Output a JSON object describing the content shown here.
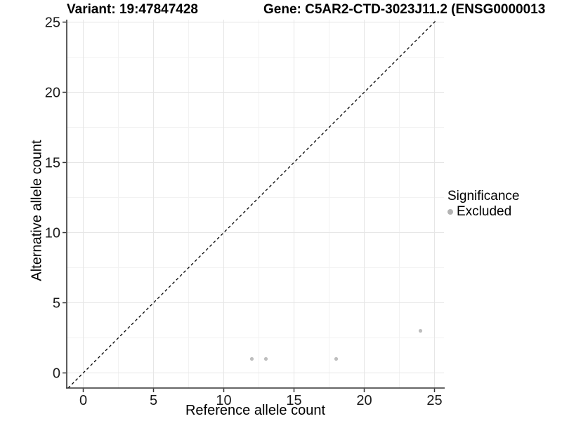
{
  "titles": {
    "variant": "Variant: 19:47847428",
    "gene": "Gene: C5AR2-CTD-3023J11.2 (ENSG0000013"
  },
  "legend": {
    "title": "Significance",
    "position": "right",
    "items": [
      {
        "label": "Excluded",
        "color": "#b3b3b3"
      }
    ]
  },
  "chart_data": {
    "type": "scatter",
    "title": "",
    "xlabel": "Reference allele count",
    "ylabel": "Alternative allele count",
    "x_ticks": [
      0,
      5,
      10,
      15,
      20,
      25
    ],
    "y_ticks": [
      0,
      5,
      10,
      15,
      20,
      25
    ],
    "xlim": [
      -1.175,
      25.675
    ],
    "ylim": [
      -1.075,
      25.175
    ],
    "grid": true,
    "identity_line": {
      "slope": 1,
      "intercept": 0,
      "style": "dashed",
      "color": "#000000"
    },
    "series": [
      {
        "name": "Excluded",
        "color": "#bebebe",
        "points": [
          {
            "x": 12,
            "y": 1
          },
          {
            "x": 13,
            "y": 1
          },
          {
            "x": 18,
            "y": 1
          },
          {
            "x": 24,
            "y": 3
          }
        ]
      }
    ],
    "colors": {
      "grid_major": "#e6e6e6",
      "grid_minor": "#f2f2f2",
      "axis_line": "#333333",
      "tick_mark": "#333333",
      "tick_label": "#1a1a1a"
    }
  }
}
